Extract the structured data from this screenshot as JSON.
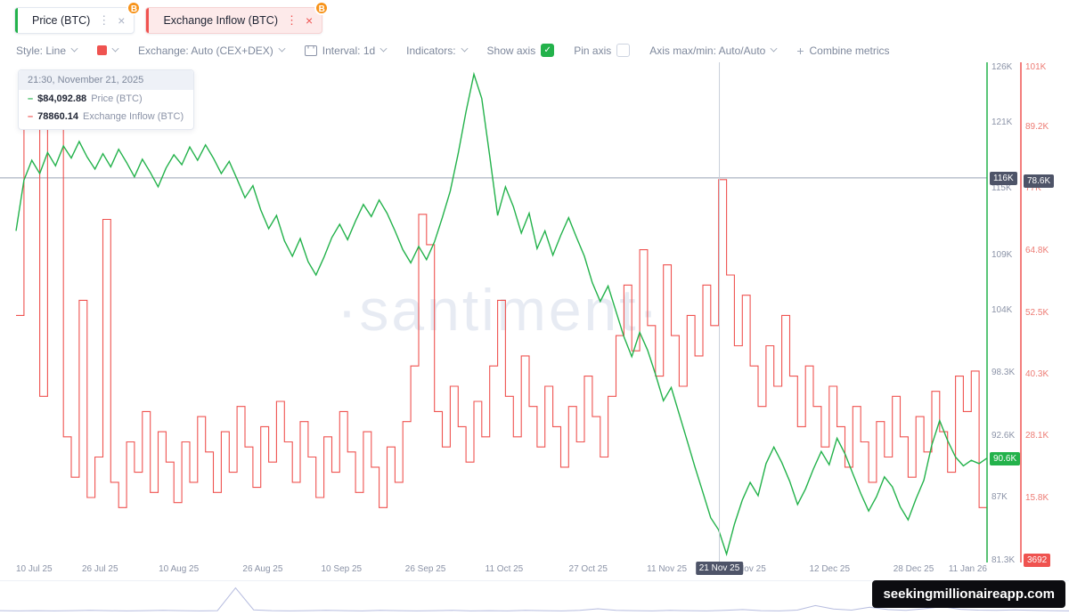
{
  "colors": {
    "green": "#23b24b",
    "red": "#ef5350",
    "orange": "#f7931a",
    "dark-badge": "#4e5468",
    "axis-text": "#8b93a7",
    "inflow-axis-text": "#ed7b74"
  },
  "icons": {
    "btc": "B",
    "close": "×",
    "kebab": "⋮",
    "check": "✓",
    "plus": "+",
    "dash": "–"
  },
  "tabs": {
    "price": {
      "label": "Price (BTC)"
    },
    "inflow": {
      "label": "Exchange Inflow (BTC)"
    }
  },
  "toolbar": {
    "style_label": "Style: Line",
    "exchange_label": "Exchange: Auto (CEX+DEX)",
    "interval_label": "Interval: 1d",
    "indicators_label": "Indicators:",
    "show_axis_label": "Show axis",
    "pin_axis_label": "Pin axis",
    "axis_maxmin_label": "Axis max/min: Auto/Auto",
    "combine_label": "Combine metrics"
  },
  "tooltip": {
    "header": "21:30, November 21, 2025",
    "rows": [
      {
        "value": "$84,092.88",
        "label": "Price (BTC)"
      },
      {
        "value": "78860.14",
        "label": "Exchange Inflow (BTC)"
      }
    ]
  },
  "watermark": "·santiment·",
  "site_badge": "seekingmillionaireapp.com",
  "chart_data": {
    "type": "line",
    "title": "BTC Price vs Exchange Inflow (BTC)",
    "x_total_days": 185,
    "x_ticks": [
      {
        "label": "10 Jul 25",
        "day": 0
      },
      {
        "label": "26 Jul 25",
        "day": 16
      },
      {
        "label": "10 Aug 25",
        "day": 31
      },
      {
        "label": "26 Aug 25",
        "day": 47
      },
      {
        "label": "10 Sep 25",
        "day": 62
      },
      {
        "label": "26 Sep 25",
        "day": 78
      },
      {
        "label": "11 Oct 25",
        "day": 93
      },
      {
        "label": "27 Oct 25",
        "day": 109
      },
      {
        "label": "11 Nov 25",
        "day": 124
      },
      {
        "label": "26 Nov 25",
        "day": 139
      },
      {
        "label": "12 Dec 25",
        "day": 155
      },
      {
        "label": "28 Dec 25",
        "day": 171
      },
      {
        "label": "11 Jan 26",
        "day": 185
      }
    ],
    "crosshair": {
      "x_label": "21 Nov 25",
      "day_index": 134,
      "price_value": "$84,092.88",
      "inflow_value": "78860.14"
    },
    "price_axis": {
      "unit": "USD (thousands)",
      "range": [
        81.3,
        126
      ],
      "ticks": [
        "126K",
        "121K",
        "115K",
        "109K",
        "104K",
        "98.3K",
        "92.6K",
        "87K",
        "81.3K"
      ],
      "tick_values": [
        126,
        121,
        115,
        109,
        104,
        98.3,
        92.6,
        87,
        81.3
      ],
      "pinned_value": 116,
      "pinned_value_label": "116K",
      "last_value": 90.6,
      "last_value_label": "90.6K"
    },
    "inflow_axis": {
      "unit": "BTC (thousands)",
      "range": [
        3.5,
        101
      ],
      "ticks": [
        "101K",
        "89.2K",
        "77K",
        "64.8K",
        "52.5K",
        "40.3K",
        "28.1K",
        "15.8K"
      ],
      "tick_values": [
        101,
        89.2,
        77,
        64.8,
        52.5,
        40.3,
        28.1,
        15.8
      ],
      "pinned_value": 78.6,
      "pinned_value_label": "78.6K",
      "last_value": 3.692,
      "last_value_label": "3692"
    },
    "series": [
      {
        "name": "Price (BTC)",
        "color": "#23b24b",
        "style": "line",
        "axis": "price",
        "values": [
          111.2,
          115.8,
          117.6,
          116.4,
          118.3,
          117.1,
          118.9,
          117.8,
          119.3,
          117.9,
          116.8,
          118.2,
          117.0,
          118.6,
          117.4,
          116.1,
          117.7,
          116.5,
          115.2,
          116.9,
          118.1,
          117.2,
          118.8,
          117.6,
          119.0,
          117.8,
          116.4,
          117.5,
          115.9,
          114.2,
          115.3,
          113.1,
          111.4,
          112.6,
          110.3,
          108.9,
          110.5,
          108.4,
          107.2,
          108.8,
          110.6,
          111.8,
          110.4,
          112.1,
          113.6,
          112.5,
          114.0,
          112.8,
          111.2,
          109.5,
          108.3,
          109.8,
          108.6,
          110.2,
          112.4,
          114.8,
          118.2,
          122.0,
          125.4,
          123.2,
          118.0,
          112.6,
          115.2,
          113.4,
          111.0,
          112.8,
          109.6,
          111.2,
          109.0,
          110.8,
          112.4,
          110.6,
          108.9,
          106.5,
          104.8,
          106.2,
          103.9,
          101.6,
          99.8,
          102.0,
          100.4,
          98.2,
          95.8,
          97.0,
          94.6,
          92.2,
          89.8,
          87.5,
          85.2,
          84.09,
          81.9,
          84.6,
          86.8,
          88.4,
          87.2,
          90.1,
          91.6,
          90.2,
          88.5,
          86.4,
          87.8,
          89.6,
          91.2,
          90.0,
          92.4,
          91.0,
          89.2,
          87.4,
          85.8,
          87.1,
          88.9,
          88.0,
          86.2,
          85.0,
          86.9,
          88.6,
          91.8,
          94.0,
          92.2,
          90.7,
          89.9,
          90.4,
          90.1,
          90.6
        ]
      },
      {
        "name": "Exchange Inflow (BTC)",
        "color": "#ef5350",
        "style": "step",
        "axis": "inflow",
        "values": [
          52,
          97,
          100,
          36,
          94,
          91,
          28,
          20,
          55,
          16,
          24,
          71,
          19,
          14,
          27,
          21,
          33,
          17,
          29,
          23,
          15,
          27,
          19,
          32,
          25,
          17,
          29,
          21,
          34,
          26,
          18,
          30,
          23,
          35,
          27,
          19,
          31,
          24,
          16,
          28,
          21,
          33,
          25,
          17,
          29,
          22,
          14,
          26,
          19,
          31,
          42,
          72,
          66,
          33,
          26,
          38,
          30,
          23,
          35,
          28,
          42,
          55,
          36,
          28,
          44,
          34,
          26,
          38,
          30,
          22,
          34,
          27,
          40,
          32,
          24,
          36,
          48,
          58,
          45,
          65,
          50,
          40,
          62,
          48,
          38,
          52,
          44,
          58,
          50,
          78.86,
          60,
          46,
          56,
          42,
          34,
          46,
          38,
          52,
          40,
          30,
          42,
          34,
          26,
          38,
          30,
          22,
          34,
          27,
          19,
          31,
          24,
          36,
          28,
          20,
          32,
          25,
          37,
          29,
          21,
          40,
          33,
          41,
          14,
          3.692
        ]
      }
    ],
    "minimap": {
      "values": [
        3,
        2,
        3,
        2,
        3,
        4,
        3,
        2,
        3,
        4,
        3,
        2,
        3,
        88,
        6,
        3,
        2,
        3,
        4,
        3,
        2,
        4,
        3,
        2,
        3,
        4,
        2,
        3,
        2,
        4,
        3,
        2,
        4,
        10,
        4,
        3,
        2,
        4,
        3,
        2,
        4,
        7,
        3,
        2,
        5,
        22,
        9,
        5,
        16,
        7,
        4,
        10,
        18,
        8,
        5,
        4,
        6,
        4,
        3,
        2
      ]
    }
  }
}
